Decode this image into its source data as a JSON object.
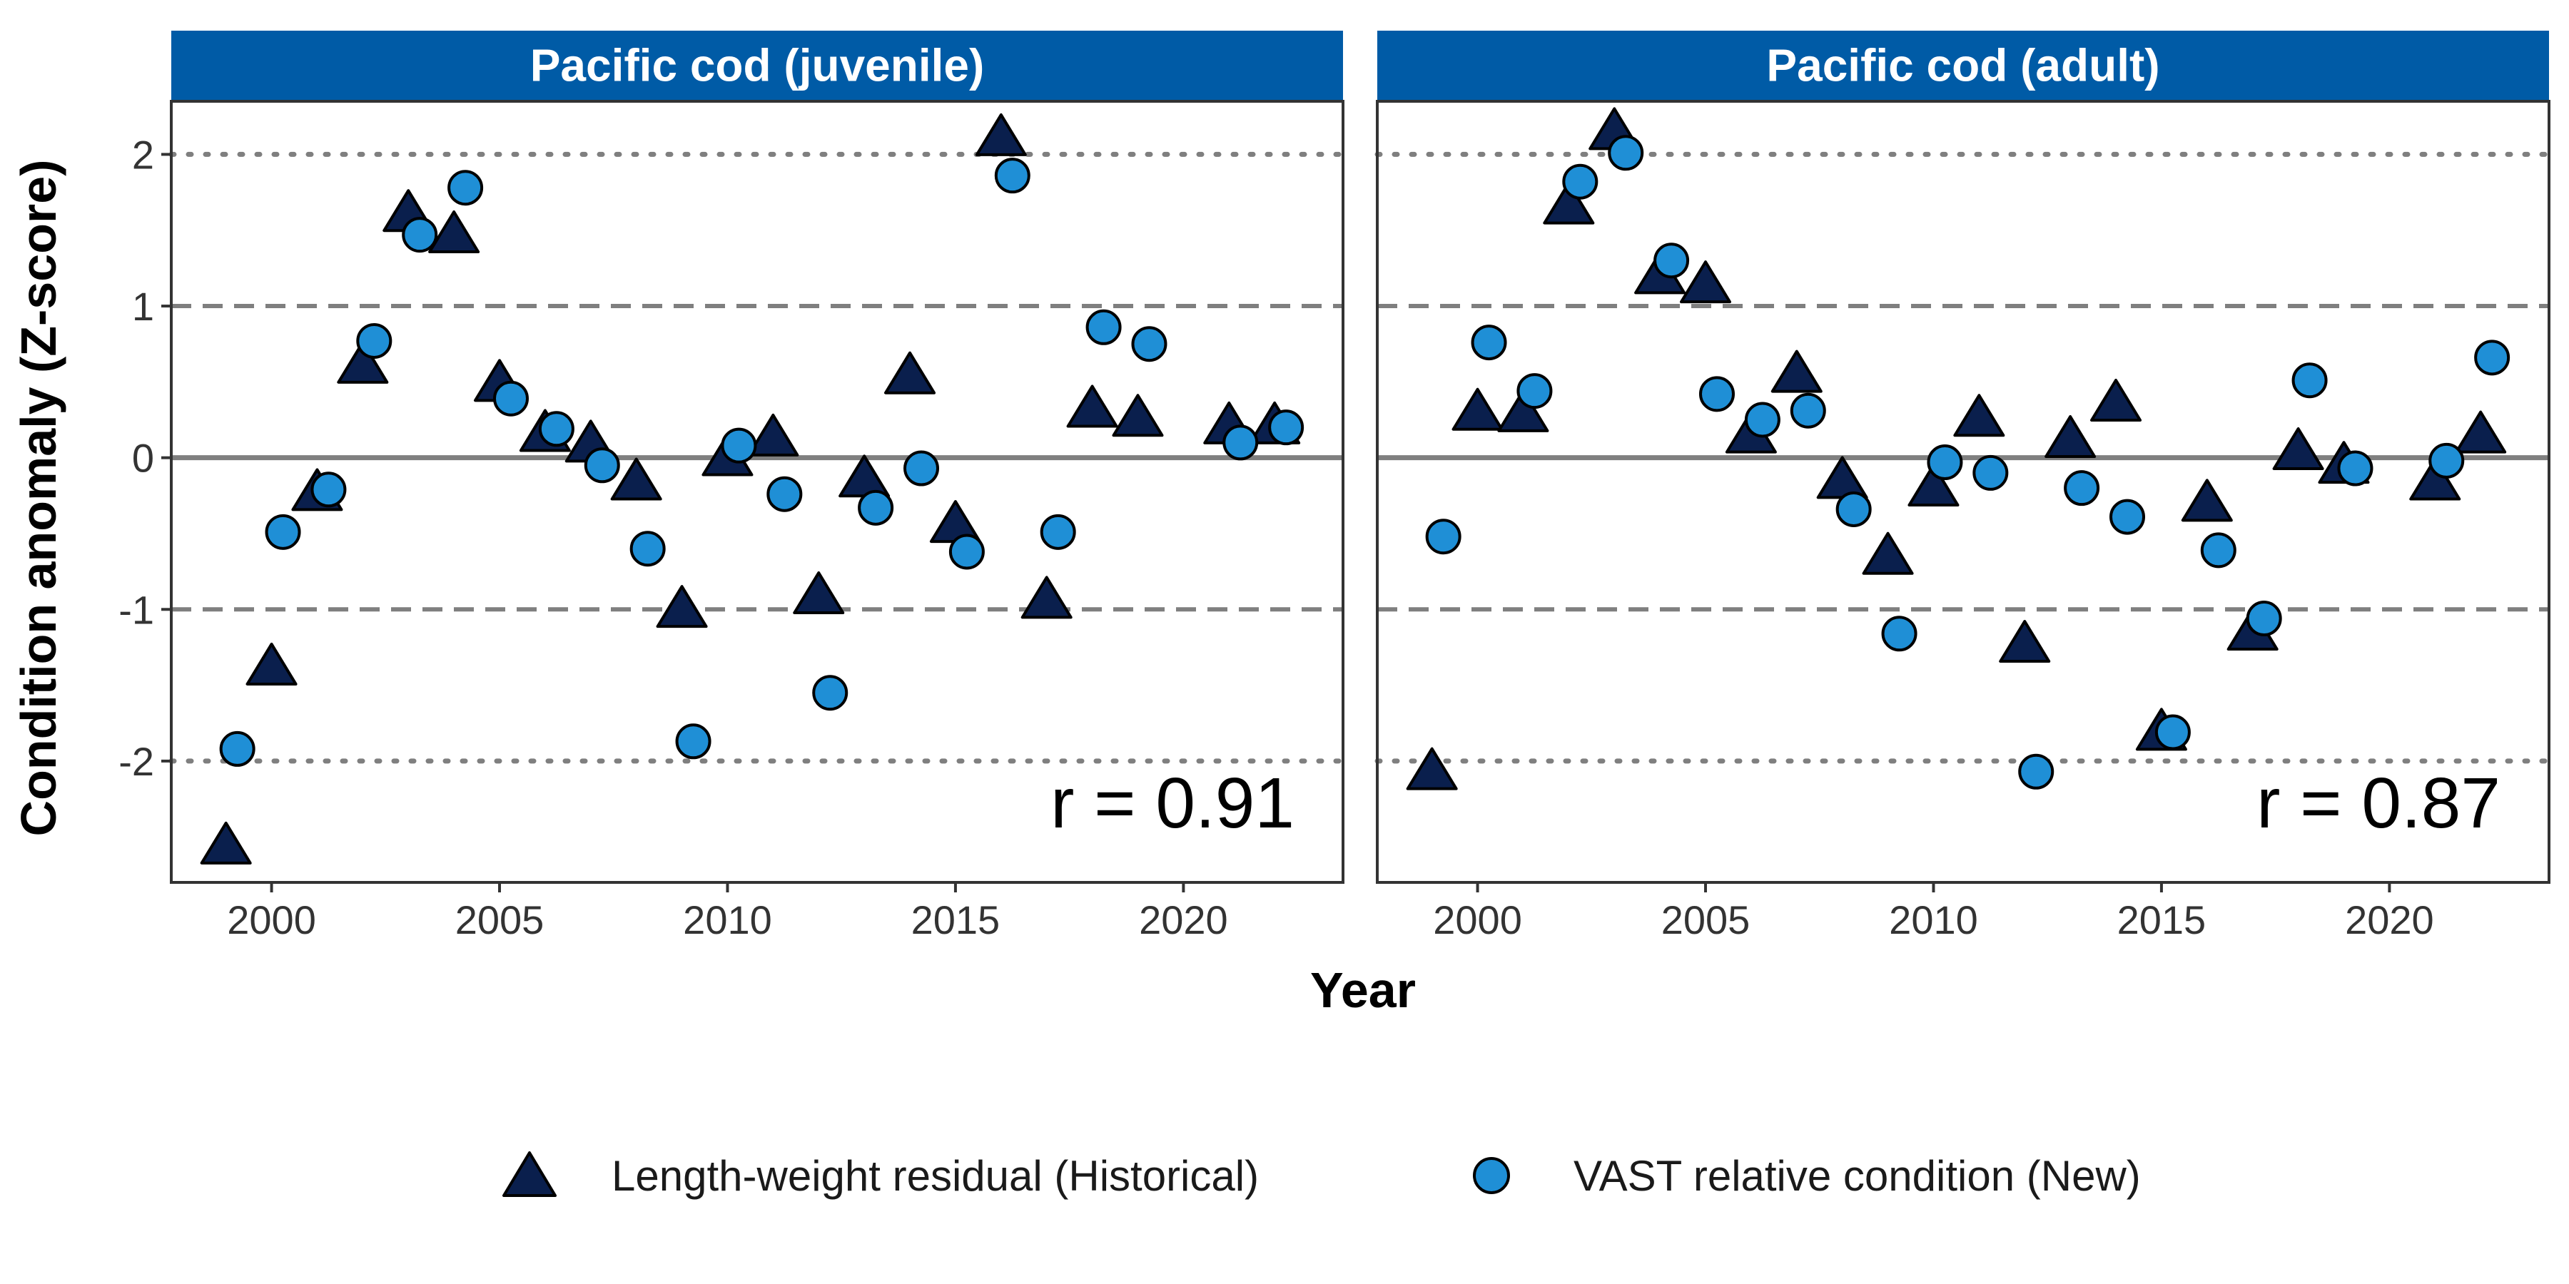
{
  "chart_data": {
    "type": "scatter",
    "ylabel": "Condition anomaly (Z-score)",
    "xlabel": "Year",
    "xlim": [
      1997.8,
      2023.5
    ],
    "ylim": [
      -2.8,
      2.35
    ],
    "x_ticks": [
      "2000",
      "2005",
      "2010",
      "2015",
      "2020"
    ],
    "y_ticks": [
      "-2",
      "-1",
      "0",
      "1",
      "2"
    ],
    "reference_lines": [
      {
        "y": 0,
        "style": "solid"
      },
      {
        "y": 1,
        "style": "dashed"
      },
      {
        "y": -1,
        "style": "dashed"
      },
      {
        "y": 2,
        "style": "dotted"
      },
      {
        "y": -2,
        "style": "dotted"
      }
    ],
    "legend": {
      "position": "bottom",
      "entries": [
        {
          "label": "Length-weight residual (Historical)",
          "marker": "triangle",
          "color": "#0a1f4d"
        },
        {
          "label": "VAST relative condition (New)",
          "marker": "circle",
          "color": "#1f8fd6"
        }
      ]
    },
    "panels": [
      {
        "title": "Pacific cod (juvenile)",
        "annotation": "r = 0.91",
        "series": [
          {
            "name": "Length-weight residual (Historical)",
            "marker": "triangle",
            "x": [
              1999,
              2000,
              2001,
              2002,
              2003,
              2004,
              2005,
              2006,
              2007,
              2008,
              2009,
              2010,
              2011,
              2012,
              2013,
              2014,
              2015,
              2016,
              2017,
              2018,
              2019,
              2021,
              2022
            ],
            "y": [
              -2.55,
              -1.37,
              -0.22,
              0.62,
              1.62,
              1.48,
              0.5,
              0.17,
              0.1,
              -0.15,
              -0.99,
              0.01,
              0.14,
              -0.9,
              -0.13,
              0.55,
              -0.43,
              2.12,
              -0.93,
              0.33,
              0.27,
              0.22,
              0.22
            ]
          },
          {
            "name": "VAST relative condition (New)",
            "marker": "circle",
            "x": [
              1999.25,
              2000.25,
              2001.25,
              2002.25,
              2003.25,
              2004.25,
              2005.25,
              2006.25,
              2007.25,
              2008.25,
              2009.25,
              2010.25,
              2011.25,
              2012.25,
              2013.25,
              2014.25,
              2015.25,
              2016.25,
              2017.25,
              2018.25,
              2019.25,
              2021.25,
              2022.25
            ],
            "y": [
              -1.92,
              -0.49,
              -0.21,
              0.77,
              1.47,
              1.78,
              0.39,
              0.19,
              -0.05,
              -0.6,
              -1.87,
              0.08,
              -0.24,
              -1.55,
              -0.33,
              -0.07,
              -0.62,
              1.86,
              -0.49,
              0.86,
              0.75,
              0.1,
              0.2
            ]
          }
        ]
      },
      {
        "title": "Pacific cod (adult)",
        "annotation": "r = 0.87",
        "series": [
          {
            "name": "Length-weight residual (Historical)",
            "marker": "triangle",
            "x": [
              1999,
              2000,
              2001,
              2002,
              2003,
              2004,
              2005,
              2006,
              2007,
              2008,
              2009,
              2010,
              2011,
              2012,
              2013,
              2014,
              2015,
              2016,
              2017,
              2018,
              2019,
              2021,
              2022
            ],
            "y": [
              -2.06,
              0.31,
              0.3,
              1.67,
              2.16,
              1.21,
              1.15,
              0.16,
              0.56,
              -0.14,
              -0.64,
              -0.19,
              0.27,
              -1.22,
              0.13,
              0.37,
              -1.8,
              -0.29,
              -1.14,
              0.05,
              -0.04,
              -0.15,
              0.16
            ]
          },
          {
            "name": "VAST relative condition (New)",
            "marker": "circle",
            "x": [
              1999.25,
              2000.25,
              2001.25,
              2002.25,
              2003.25,
              2004.25,
              2005.25,
              2006.25,
              2007.25,
              2008.25,
              2009.25,
              2010.25,
              2011.25,
              2012.25,
              2013.25,
              2014.25,
              2015.25,
              2016.25,
              2017.25,
              2018.25,
              2019.25,
              2021.25,
              2022.25
            ],
            "y": [
              -0.52,
              0.76,
              0.44,
              1.82,
              2.01,
              1.3,
              0.42,
              0.25,
              0.31,
              -0.34,
              -1.16,
              -0.03,
              -0.1,
              -2.07,
              -0.2,
              -0.39,
              -1.81,
              -0.61,
              -1.06,
              0.51,
              -0.07,
              -0.02,
              0.66
            ]
          }
        ]
      }
    ]
  },
  "colors": {
    "strip": "#005ba6",
    "triangle": "#0a1f4d",
    "circle": "#1f8fd6",
    "outline": "#000000",
    "reference_line": "#7f7f7f",
    "panel_border": "#333333"
  }
}
